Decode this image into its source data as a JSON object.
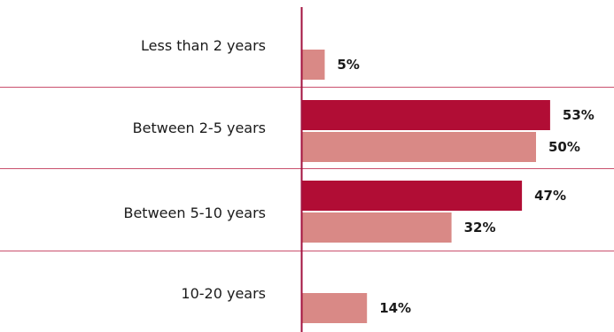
{
  "chart_data": {
    "type": "bar",
    "orientation": "horizontal",
    "categories": [
      "Less than 2 years",
      "Between 2-5 years",
      "Between 5-10 years",
      "10-20 years"
    ],
    "series": [
      {
        "values": [
          null,
          53,
          47,
          null
        ],
        "labels": [
          "",
          "53%",
          "47%",
          ""
        ],
        "color": "#b10d35"
      },
      {
        "values": [
          5,
          50,
          32,
          14
        ],
        "labels": [
          "5%",
          "50%",
          "32%",
          "14%"
        ],
        "color": "#d98986"
      }
    ],
    "xlim": [
      0,
      100
    ],
    "title": "",
    "xlabel": "",
    "ylabel": "",
    "legend": "none",
    "grid": false
  },
  "colors": {
    "axis": "#a3123f",
    "divider": "#c9506d"
  }
}
